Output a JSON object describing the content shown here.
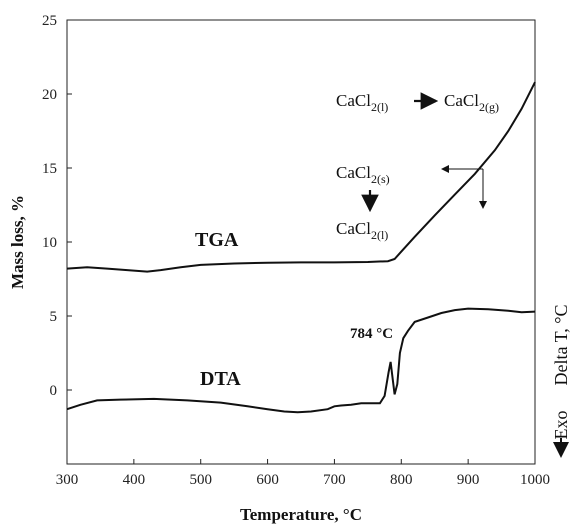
{
  "chart_data": {
    "type": "line",
    "xlabel": "Temperature, °C",
    "ylabel": "Mass loss, %",
    "y2label": "Delta T, °C",
    "xlim": [
      300,
      1000
    ],
    "ylim": [
      -5,
      25
    ],
    "xticks": [
      300,
      400,
      500,
      600,
      700,
      800,
      900,
      1000
    ],
    "yticks": [
      0,
      5,
      10,
      15,
      20,
      25
    ],
    "grid": false,
    "series": [
      {
        "name": "TGA",
        "x": [
          300,
          330,
          360,
          390,
          420,
          440,
          470,
          500,
          550,
          600,
          650,
          700,
          750,
          780,
          790,
          800,
          820,
          850,
          880,
          910,
          940,
          960,
          980,
          1000
        ],
        "y": [
          8.2,
          8.3,
          8.2,
          8.1,
          8.0,
          8.1,
          8.3,
          8.45,
          8.55,
          8.6,
          8.62,
          8.62,
          8.65,
          8.7,
          8.85,
          9.35,
          10.35,
          11.8,
          13.2,
          14.6,
          16.2,
          17.5,
          19.0,
          20.8
        ]
      },
      {
        "name": "DTA",
        "x": [
          300,
          320,
          345,
          380,
          430,
          480,
          530,
          570,
          600,
          625,
          645,
          665,
          690,
          700,
          710,
          725,
          740,
          755,
          768,
          775,
          781,
          784,
          787,
          790,
          794,
          798,
          803,
          810,
          820,
          840,
          860,
          880,
          900,
          930,
          960,
          980,
          1000
        ],
        "y": [
          -1.3,
          -1.0,
          -0.7,
          -0.65,
          -0.6,
          -0.7,
          -0.85,
          -1.1,
          -1.3,
          -1.45,
          -1.5,
          -1.45,
          -1.3,
          -1.1,
          -1.05,
          -1.0,
          -0.9,
          -0.9,
          -0.9,
          -0.4,
          1.2,
          1.9,
          0.8,
          -0.3,
          0.4,
          2.5,
          3.5,
          4.0,
          4.6,
          4.9,
          5.2,
          5.4,
          5.5,
          5.45,
          5.35,
          5.25,
          5.3
        ]
      }
    ],
    "annotations": {
      "tga_label": "TGA",
      "dta_label": "DTA",
      "peak_label": "784 °C",
      "exo_label": "Exo",
      "reaction_top_left": "CaCl",
      "reaction_top_left_sub": "2(l)",
      "reaction_top_right": "CaCl",
      "reaction_top_right_sub": "2(g)",
      "reaction_mid_top": "CaCl",
      "reaction_mid_top_sub": "2(s)",
      "reaction_mid_bottom": "CaCl",
      "reaction_mid_bottom_sub": "2(l)"
    }
  }
}
